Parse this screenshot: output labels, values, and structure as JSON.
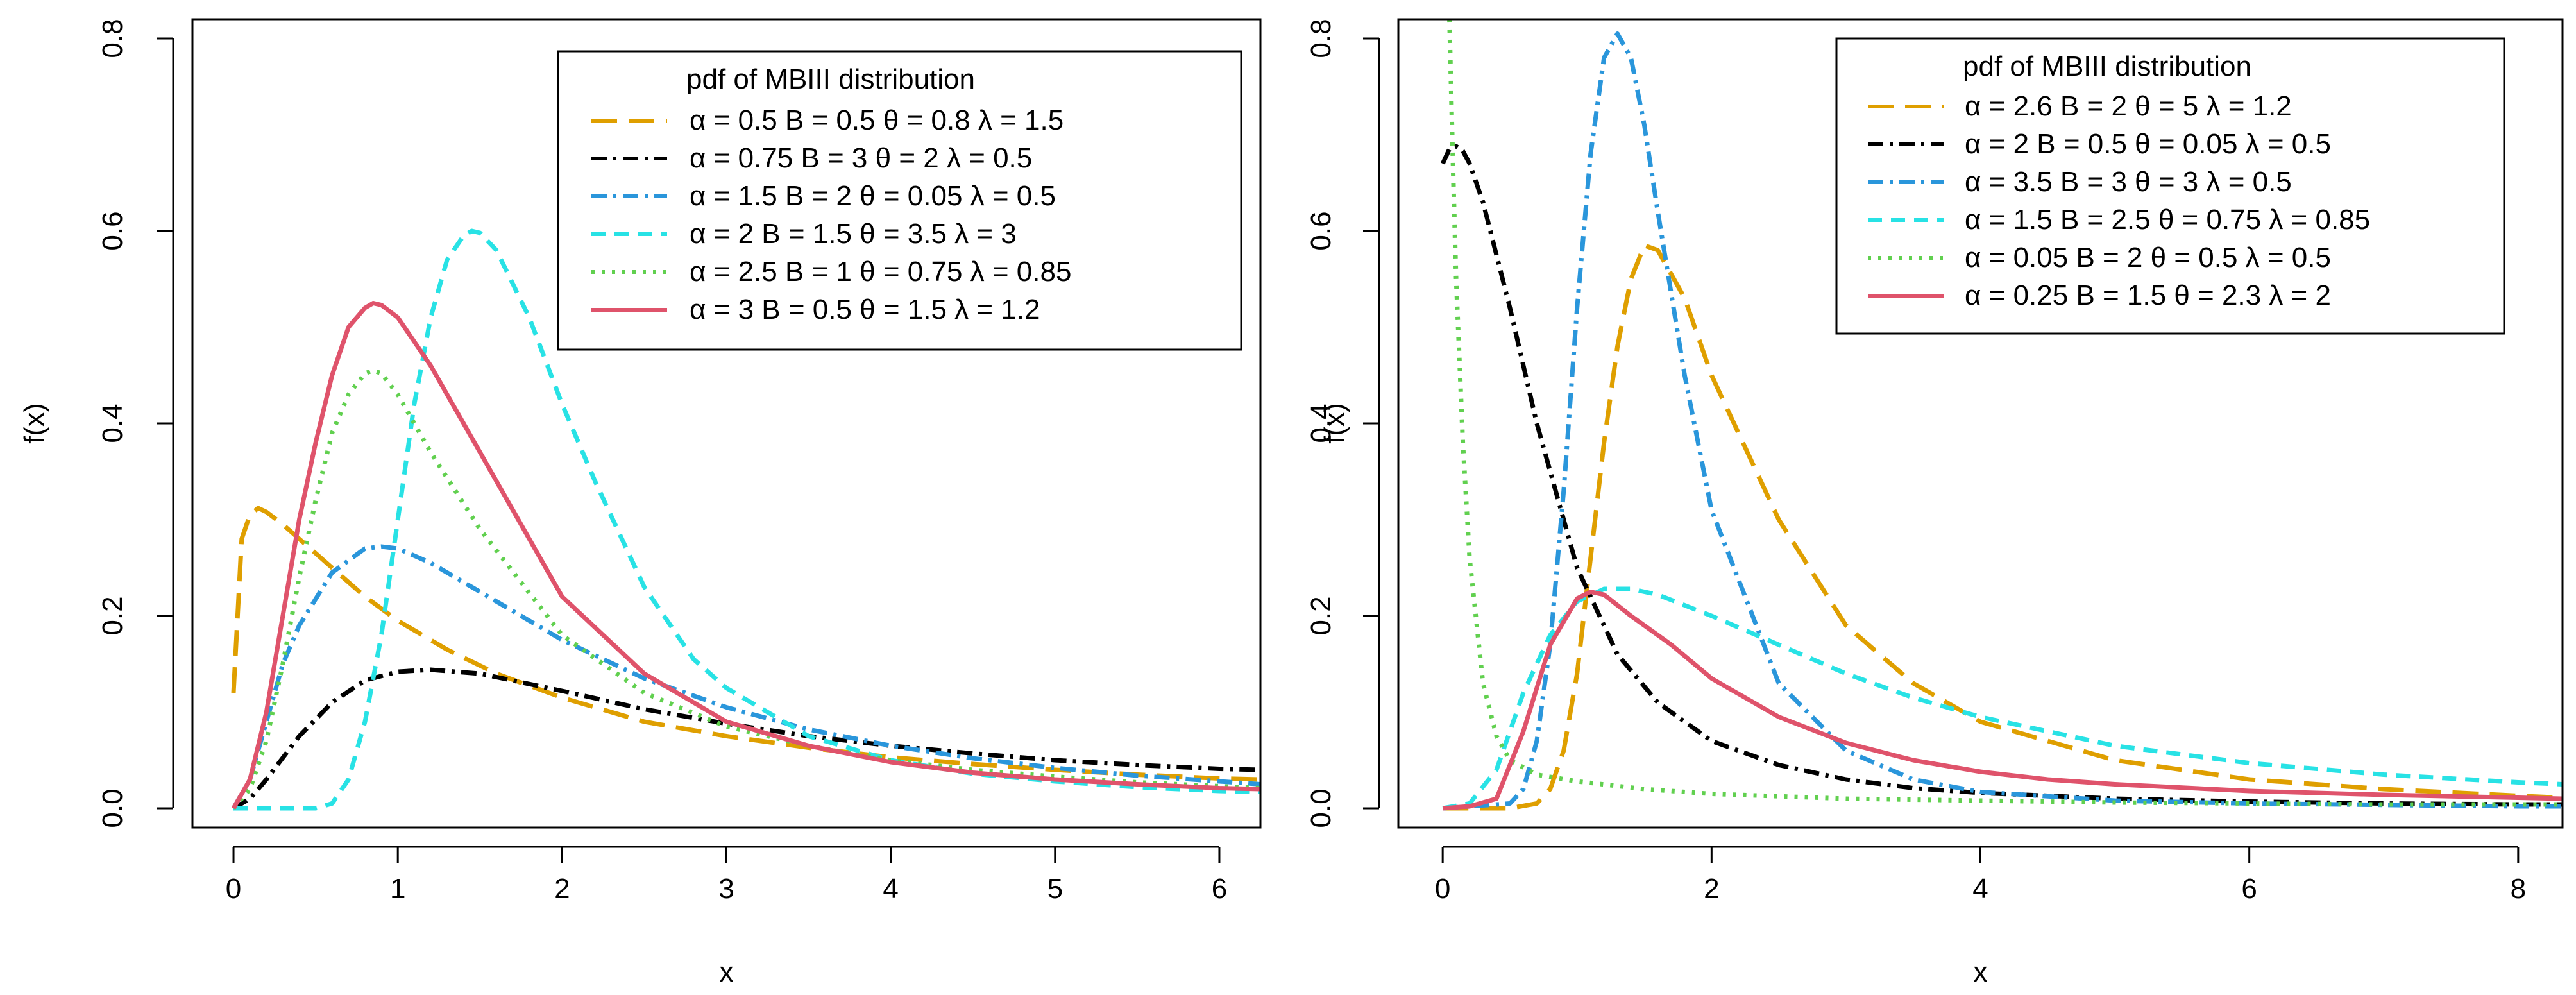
{
  "chart_data": [
    {
      "type": "line",
      "xlabel": "x",
      "ylabel": "f(x)",
      "xlim": [
        -0.25,
        6.25
      ],
      "ylim": [
        -0.02,
        0.82
      ],
      "xticks": [
        0,
        1,
        2,
        3,
        4,
        5,
        6
      ],
      "yticks": [
        0.0,
        0.2,
        0.4,
        0.6,
        0.8
      ],
      "xtick_labels": [
        "0",
        "1",
        "2",
        "3",
        "4",
        "5",
        "6"
      ],
      "ytick_labels": [
        "0.0",
        "0.2",
        "0.4",
        "0.6",
        "0.8"
      ],
      "legend": {
        "title": "pdf of MBIII distribution",
        "placement": "top-right"
      },
      "series": [
        {
          "name": "α = 0.5  B = 0.5  θ = 0.8  λ = 1.5",
          "color": "#DF9F00",
          "dash": "long-dash",
          "x": [
            0.0,
            0.05,
            0.1,
            0.15,
            0.2,
            0.3,
            0.4,
            0.6,
            0.8,
            1.0,
            1.3,
            1.6,
            2.0,
            2.5,
            3.0,
            3.5,
            4.0,
            4.5,
            5.0,
            5.5,
            6.0,
            6.25
          ],
          "y": [
            0.12,
            0.28,
            0.305,
            0.312,
            0.308,
            0.295,
            0.28,
            0.25,
            0.22,
            0.195,
            0.165,
            0.14,
            0.115,
            0.09,
            0.075,
            0.063,
            0.053,
            0.046,
            0.04,
            0.035,
            0.031,
            0.03
          ]
        },
        {
          "name": "α = 0.75  B = 3  θ = 2  λ = 0.5",
          "color": "#000000",
          "dash": "dash-dot",
          "x": [
            0.0,
            0.1,
            0.2,
            0.4,
            0.6,
            0.8,
            1.0,
            1.2,
            1.5,
            2.0,
            2.5,
            3.0,
            3.5,
            4.0,
            4.5,
            5.0,
            5.5,
            6.0,
            6.25
          ],
          "y": [
            0.0,
            0.01,
            0.03,
            0.075,
            0.11,
            0.133,
            0.142,
            0.144,
            0.14,
            0.122,
            0.103,
            0.088,
            0.075,
            0.065,
            0.057,
            0.05,
            0.045,
            0.041,
            0.04
          ]
        },
        {
          "name": "α = 1.5  B = 2  θ = 0.05  λ = 0.5",
          "color": "#2A96DB",
          "dash": "dash-dot",
          "x": [
            0.0,
            0.1,
            0.2,
            0.3,
            0.4,
            0.6,
            0.8,
            0.9,
            1.0,
            1.2,
            1.5,
            2.0,
            2.5,
            3.0,
            3.5,
            4.0,
            4.5,
            5.0,
            5.5,
            6.0,
            6.25
          ],
          "y": [
            0.0,
            0.03,
            0.09,
            0.15,
            0.19,
            0.245,
            0.27,
            0.272,
            0.27,
            0.255,
            0.225,
            0.175,
            0.135,
            0.105,
            0.082,
            0.065,
            0.052,
            0.042,
            0.034,
            0.028,
            0.025
          ]
        },
        {
          "name": "α = 2  B = 1.5  θ = 3.5  λ = 3",
          "color": "#28E2E5",
          "dash": "dash",
          "x": [
            0.0,
            0.3,
            0.5,
            0.6,
            0.7,
            0.8,
            0.9,
            1.0,
            1.1,
            1.2,
            1.3,
            1.4,
            1.45,
            1.5,
            1.6,
            1.8,
            2.0,
            2.2,
            2.5,
            2.8,
            3.0,
            3.5,
            4.0,
            4.5,
            5.0,
            5.5,
            6.0,
            6.25
          ],
          "y": [
            0.0,
            0.0,
            0.0,
            0.005,
            0.03,
            0.09,
            0.18,
            0.3,
            0.42,
            0.51,
            0.57,
            0.595,
            0.6,
            0.598,
            0.58,
            0.51,
            0.42,
            0.34,
            0.23,
            0.155,
            0.125,
            0.075,
            0.05,
            0.036,
            0.028,
            0.022,
            0.018,
            0.017
          ]
        },
        {
          "name": "α = 2.5  B = 1  θ = 0.75  λ = 0.85",
          "color": "#61D04F",
          "dash": "dot",
          "x": [
            0.0,
            0.1,
            0.2,
            0.3,
            0.4,
            0.5,
            0.6,
            0.7,
            0.8,
            0.85,
            0.9,
            1.0,
            1.2,
            1.5,
            2.0,
            2.5,
            3.0,
            3.5,
            4.0,
            4.5,
            5.0,
            5.5,
            6.0,
            6.25
          ],
          "y": [
            0.0,
            0.02,
            0.07,
            0.15,
            0.24,
            0.32,
            0.39,
            0.43,
            0.452,
            0.455,
            0.452,
            0.43,
            0.37,
            0.29,
            0.18,
            0.12,
            0.085,
            0.065,
            0.05,
            0.04,
            0.033,
            0.027,
            0.023,
            0.021
          ]
        },
        {
          "name": "α = 3  B = 0.5  θ = 1.5  λ = 1.2",
          "color": "#DF536B",
          "dash": "solid",
          "x": [
            0.0,
            0.1,
            0.2,
            0.3,
            0.4,
            0.5,
            0.6,
            0.7,
            0.8,
            0.85,
            0.9,
            1.0,
            1.2,
            1.5,
            2.0,
            2.5,
            3.0,
            3.5,
            4.0,
            4.5,
            5.0,
            5.5,
            6.0,
            6.25
          ],
          "y": [
            0.0,
            0.03,
            0.1,
            0.2,
            0.3,
            0.38,
            0.45,
            0.5,
            0.52,
            0.525,
            0.523,
            0.51,
            0.46,
            0.37,
            0.22,
            0.14,
            0.09,
            0.065,
            0.048,
            0.037,
            0.03,
            0.025,
            0.021,
            0.02
          ]
        }
      ]
    },
    {
      "type": "line",
      "xlabel": "x",
      "ylabel": "f(x)",
      "xlim": [
        -0.33,
        8.33
      ],
      "ylim": [
        -0.02,
        0.82
      ],
      "xticks": [
        0,
        2,
        4,
        6,
        8
      ],
      "yticks": [
        0.0,
        0.2,
        0.4,
        0.6,
        0.8
      ],
      "xtick_labels": [
        "0",
        "2",
        "4",
        "6",
        "8"
      ],
      "ytick_labels": [
        "0.0",
        "0.2",
        "0.4",
        "0.6",
        "0.8"
      ],
      "legend": {
        "title": "pdf of MBIII distribution",
        "placement": "top-right"
      },
      "series": [
        {
          "name": "α = 2.6  B = 2  θ = 5  λ = 1.2",
          "color": "#DF9F00",
          "dash": "long-dash",
          "x": [
            0.0,
            0.5,
            0.7,
            0.8,
            0.9,
            1.0,
            1.1,
            1.2,
            1.3,
            1.4,
            1.5,
            1.6,
            1.8,
            2.0,
            2.5,
            3.0,
            3.5,
            4.0,
            5.0,
            6.0,
            7.0,
            8.0,
            8.33
          ],
          "y": [
            0.0,
            0.0,
            0.005,
            0.02,
            0.06,
            0.14,
            0.26,
            0.38,
            0.48,
            0.55,
            0.585,
            0.58,
            0.53,
            0.45,
            0.3,
            0.19,
            0.13,
            0.09,
            0.05,
            0.03,
            0.02,
            0.013,
            0.011
          ]
        },
        {
          "name": "α = 2  B = 0.5  θ = 0.05  λ = 0.5",
          "color": "#000000",
          "dash": "dash-dot",
          "x": [
            0.0,
            0.05,
            0.1,
            0.15,
            0.2,
            0.3,
            0.5,
            0.7,
            1.0,
            1.3,
            1.6,
            2.0,
            2.5,
            3.0,
            3.5,
            4.0,
            5.0,
            6.0,
            7.0,
            8.0,
            8.33
          ],
          "y": [
            0.67,
            0.685,
            0.688,
            0.683,
            0.67,
            0.63,
            0.52,
            0.4,
            0.25,
            0.16,
            0.11,
            0.07,
            0.045,
            0.03,
            0.021,
            0.016,
            0.01,
            0.007,
            0.005,
            0.004,
            0.004
          ]
        },
        {
          "name": "α = 3.5  B = 3  θ = 3  λ = 0.5",
          "color": "#2A96DB",
          "dash": "dash-dot",
          "x": [
            0.0,
            0.5,
            0.6,
            0.7,
            0.8,
            0.9,
            1.0,
            1.1,
            1.2,
            1.3,
            1.4,
            1.5,
            1.6,
            1.8,
            2.0,
            2.5,
            3.0,
            3.5,
            4.0,
            5.0,
            6.0,
            8.0,
            8.33
          ],
          "y": [
            0.0,
            0.005,
            0.02,
            0.07,
            0.17,
            0.33,
            0.52,
            0.68,
            0.78,
            0.805,
            0.78,
            0.71,
            0.62,
            0.45,
            0.31,
            0.13,
            0.06,
            0.03,
            0.017,
            0.008,
            0.005,
            0.002,
            0.002
          ]
        },
        {
          "name": "α = 1.5  B = 2.5  θ = 0.75  λ = 0.85",
          "color": "#28E2E5",
          "dash": "dash",
          "x": [
            0.0,
            0.2,
            0.4,
            0.6,
            0.8,
            1.0,
            1.2,
            1.4,
            1.6,
            2.0,
            2.5,
            3.0,
            3.5,
            4.0,
            5.0,
            6.0,
            7.0,
            8.0,
            8.33
          ],
          "y": [
            0.0,
            0.005,
            0.04,
            0.12,
            0.18,
            0.215,
            0.228,
            0.228,
            0.222,
            0.2,
            0.17,
            0.14,
            0.115,
            0.095,
            0.065,
            0.047,
            0.035,
            0.027,
            0.025
          ]
        },
        {
          "name": "α = 0.05  B = 2  θ = 0.5  λ = 0.5",
          "color": "#61D04F",
          "dash": "dot",
          "x": [
            0.05,
            0.08,
            0.1,
            0.15,
            0.2,
            0.3,
            0.4,
            0.5,
            0.7,
            1.0,
            1.5,
            2.0,
            3.0,
            4.0,
            5.0,
            6.0,
            7.0,
            8.0,
            8.33
          ],
          "y": [
            0.82,
            0.65,
            0.55,
            0.38,
            0.26,
            0.13,
            0.075,
            0.05,
            0.035,
            0.028,
            0.02,
            0.015,
            0.01,
            0.008,
            0.006,
            0.005,
            0.004,
            0.004,
            0.004
          ]
        },
        {
          "name": "α = 0.25  B = 1.5  θ = 2.3  λ = 2",
          "color": "#DF536B",
          "dash": "solid",
          "x": [
            0.0,
            0.2,
            0.4,
            0.6,
            0.8,
            1.0,
            1.1,
            1.2,
            1.4,
            1.7,
            2.0,
            2.5,
            3.0,
            3.5,
            4.0,
            4.5,
            5.0,
            6.0,
            7.0,
            8.0,
            8.33
          ],
          "y": [
            0.0,
            0.002,
            0.01,
            0.08,
            0.17,
            0.218,
            0.225,
            0.222,
            0.2,
            0.17,
            0.135,
            0.095,
            0.068,
            0.05,
            0.038,
            0.03,
            0.025,
            0.018,
            0.014,
            0.011,
            0.01
          ]
        }
      ]
    }
  ]
}
